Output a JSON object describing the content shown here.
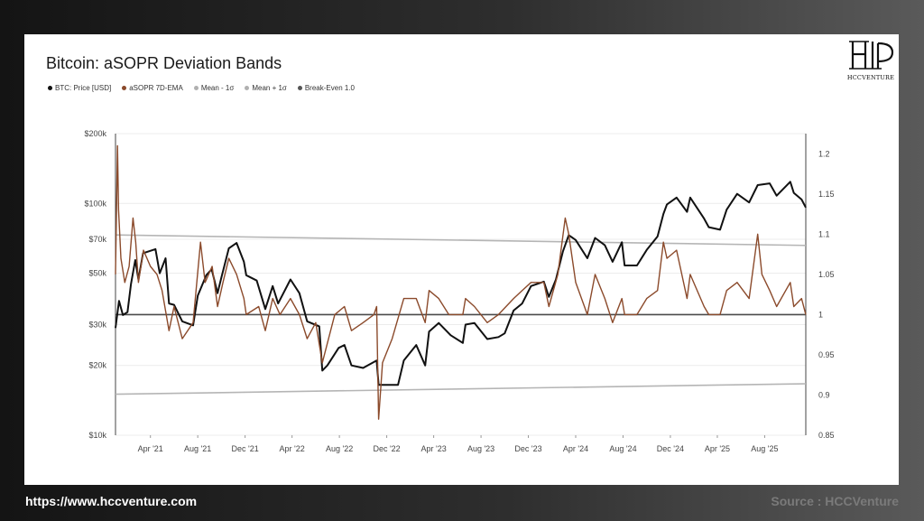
{
  "footer": {
    "url": "https://www.hccventure.com",
    "source": "Source : HCCVenture"
  },
  "logo": {
    "text": "HCCVENTURE"
  },
  "chart_data": {
    "type": "line",
    "title": "Bitcoin: aSOPR Deviation Bands",
    "legend": [
      {
        "name": "BTC: Price [USD]",
        "color": "#111111"
      },
      {
        "name": "aSOPR 7D-EMA",
        "color": "#8b4a2b"
      },
      {
        "name": "Mean - 1σ",
        "color": "#b0b0b0"
      },
      {
        "name": "Mean + 1σ",
        "color": "#b0b0b0"
      },
      {
        "name": "Break-Even 1.0",
        "color": "#555555"
      }
    ],
    "legend_placement": "top-left",
    "grid": true,
    "x_ticks": [
      "Apr '21",
      "Aug '21",
      "Dec '21",
      "Apr '22",
      "Aug '22",
      "Dec '22",
      "Apr '23",
      "Aug '23",
      "Dec '23",
      "Apr '24",
      "Aug '24",
      "Dec '24",
      "Apr '25",
      "Aug '25"
    ],
    "x_range": [
      "2021-01-01",
      "2025-11-15"
    ],
    "y_left": {
      "scale": "log",
      "range": [
        10000,
        200000
      ],
      "ticks": [
        10000,
        20000,
        30000,
        50000,
        70000,
        100000,
        200000
      ],
      "tick_labels": [
        "$10k",
        "$20k",
        "$30k",
        "$50k",
        "$70k",
        "$100k",
        "$200k"
      ]
    },
    "y_right": {
      "scale": "linear",
      "range": [
        0.85,
        1.225
      ],
      "ticks": [
        0.85,
        0.9,
        0.95,
        1,
        1.05,
        1.1,
        1.15,
        1.2
      ],
      "tick_labels": [
        "0.85",
        "0.9",
        "0.95",
        "1",
        "1.05",
        "1.1",
        "1.15",
        "1.2"
      ]
    },
    "bands": {
      "mean_plus": {
        "start": [
          "2021-01-01",
          1.099
        ],
        "end": [
          "2025-11-15",
          1.086
        ]
      },
      "mean_minus": {
        "start": [
          "2021-01-01",
          0.901
        ],
        "end": [
          "2025-11-15",
          0.914
        ]
      },
      "break_even": 1.0
    },
    "series": [
      {
        "name": "BTC: Price [USD]",
        "axis": "left",
        "color": "#111111",
        "points": [
          [
            "2021-01-01",
            29000
          ],
          [
            "2021-01-10",
            38000
          ],
          [
            "2021-01-20",
            33000
          ],
          [
            "2021-02-01",
            34000
          ],
          [
            "2021-02-10",
            45000
          ],
          [
            "2021-02-21",
            57000
          ],
          [
            "2021-03-01",
            47000
          ],
          [
            "2021-03-13",
            61000
          ],
          [
            "2021-04-14",
            63500
          ],
          [
            "2021-04-25",
            50000
          ],
          [
            "2021-05-10",
            58000
          ],
          [
            "2021-05-19",
            37000
          ],
          [
            "2021-06-01",
            36500
          ],
          [
            "2021-06-22",
            31000
          ],
          [
            "2021-07-20",
            29800
          ],
          [
            "2021-08-01",
            40000
          ],
          [
            "2021-08-23",
            49000
          ],
          [
            "2021-09-06",
            52000
          ],
          [
            "2021-09-21",
            41000
          ],
          [
            "2021-10-01",
            48000
          ],
          [
            "2021-10-20",
            64000
          ],
          [
            "2021-11-09",
            67500
          ],
          [
            "2021-11-28",
            56000
          ],
          [
            "2021-12-04",
            49000
          ],
          [
            "2021-12-31",
            46500
          ],
          [
            "2022-01-22",
            35000
          ],
          [
            "2022-02-10",
            44000
          ],
          [
            "2022-02-24",
            37000
          ],
          [
            "2022-03-28",
            47000
          ],
          [
            "2022-04-20",
            41000
          ],
          [
            "2022-05-10",
            31000
          ],
          [
            "2022-06-10",
            29500
          ],
          [
            "2022-06-18",
            19000
          ],
          [
            "2022-07-01",
            20000
          ],
          [
            "2022-07-30",
            23800
          ],
          [
            "2022-08-14",
            24500
          ],
          [
            "2022-09-01",
            20000
          ],
          [
            "2022-10-01",
            19500
          ],
          [
            "2022-11-05",
            21000
          ],
          [
            "2022-11-10",
            16500
          ],
          [
            "2022-12-30",
            16500
          ],
          [
            "2023-01-14",
            21000
          ],
          [
            "2023-02-15",
            24500
          ],
          [
            "2023-03-10",
            20000
          ],
          [
            "2023-03-20",
            28000
          ],
          [
            "2023-04-14",
            30500
          ],
          [
            "2023-05-15",
            27000
          ],
          [
            "2023-06-15",
            25000
          ],
          [
            "2023-06-22",
            30000
          ],
          [
            "2023-07-15",
            30500
          ],
          [
            "2023-08-17",
            26000
          ],
          [
            "2023-09-15",
            26500
          ],
          [
            "2023-10-01",
            27500
          ],
          [
            "2023-10-24",
            34500
          ],
          [
            "2023-11-15",
            37000
          ],
          [
            "2023-12-08",
            44000
          ],
          [
            "2024-01-10",
            46000
          ],
          [
            "2024-01-23",
            39500
          ],
          [
            "2024-02-10",
            47000
          ],
          [
            "2024-02-28",
            62000
          ],
          [
            "2024-03-14",
            73000
          ],
          [
            "2024-04-01",
            69500
          ],
          [
            "2024-05-01",
            58000
          ],
          [
            "2024-05-21",
            71000
          ],
          [
            "2024-06-15",
            66000
          ],
          [
            "2024-07-05",
            56000
          ],
          [
            "2024-07-29",
            68000
          ],
          [
            "2024-08-05",
            54000
          ],
          [
            "2024-09-06",
            54000
          ],
          [
            "2024-10-01",
            63000
          ],
          [
            "2024-10-29",
            72000
          ],
          [
            "2024-11-13",
            90000
          ],
          [
            "2024-11-22",
            99000
          ],
          [
            "2024-12-17",
            106000
          ],
          [
            "2025-01-13",
            92000
          ],
          [
            "2025-01-21",
            106000
          ],
          [
            "2025-02-26",
            86000
          ],
          [
            "2025-03-10",
            79000
          ],
          [
            "2025-04-08",
            77000
          ],
          [
            "2025-04-25",
            94000
          ],
          [
            "2025-05-22",
            110000
          ],
          [
            "2025-06-22",
            101000
          ],
          [
            "2025-07-14",
            120000
          ],
          [
            "2025-08-14",
            122000
          ],
          [
            "2025-09-01",
            108000
          ],
          [
            "2025-10-06",
            124000
          ],
          [
            "2025-10-15",
            111000
          ],
          [
            "2025-11-04",
            104000
          ],
          [
            "2025-11-15",
            96000
          ]
        ]
      },
      {
        "name": "aSOPR 7D-EMA",
        "axis": "right",
        "color": "#8b4a2b",
        "points": [
          [
            "2021-01-01",
            1.05
          ],
          [
            "2021-01-06",
            1.21
          ],
          [
            "2021-01-09",
            1.13
          ],
          [
            "2021-01-15",
            1.07
          ],
          [
            "2021-01-25",
            1.04
          ],
          [
            "2021-02-05",
            1.06
          ],
          [
            "2021-02-15",
            1.12
          ],
          [
            "2021-02-22",
            1.09
          ],
          [
            "2021-03-01",
            1.04
          ],
          [
            "2021-03-14",
            1.08
          ],
          [
            "2021-04-01",
            1.06
          ],
          [
            "2021-04-18",
            1.05
          ],
          [
            "2021-05-01",
            1.03
          ],
          [
            "2021-05-19",
            0.98
          ],
          [
            "2021-06-01",
            1.01
          ],
          [
            "2021-06-22",
            0.97
          ],
          [
            "2021-07-20",
            0.99
          ],
          [
            "2021-08-08",
            1.09
          ],
          [
            "2021-08-20",
            1.04
          ],
          [
            "2021-09-07",
            1.06
          ],
          [
            "2021-09-21",
            1.01
          ],
          [
            "2021-10-05",
            1.04
          ],
          [
            "2021-10-20",
            1.07
          ],
          [
            "2021-11-09",
            1.05
          ],
          [
            "2021-11-28",
            1.02
          ],
          [
            "2021-12-04",
            1.0
          ],
          [
            "2022-01-05",
            1.01
          ],
          [
            "2022-01-22",
            0.98
          ],
          [
            "2022-02-10",
            1.02
          ],
          [
            "2022-03-01",
            1.0
          ],
          [
            "2022-03-28",
            1.02
          ],
          [
            "2022-04-20",
            1.0
          ],
          [
            "2022-05-10",
            0.97
          ],
          [
            "2022-06-01",
            0.99
          ],
          [
            "2022-06-18",
            0.94
          ],
          [
            "2022-07-20",
            1.0
          ],
          [
            "2022-08-14",
            1.01
          ],
          [
            "2022-09-01",
            0.98
          ],
          [
            "2022-10-01",
            0.99
          ],
          [
            "2022-10-29",
            1.0
          ],
          [
            "2022-11-05",
            1.01
          ],
          [
            "2022-11-10",
            0.87
          ],
          [
            "2022-11-20",
            0.94
          ],
          [
            "2022-12-15",
            0.97
          ],
          [
            "2023-01-14",
            1.02
          ],
          [
            "2023-02-15",
            1.02
          ],
          [
            "2023-03-10",
            0.99
          ],
          [
            "2023-03-20",
            1.03
          ],
          [
            "2023-04-14",
            1.02
          ],
          [
            "2023-05-10",
            1.0
          ],
          [
            "2023-06-15",
            1.0
          ],
          [
            "2023-06-22",
            1.02
          ],
          [
            "2023-07-15",
            1.01
          ],
          [
            "2023-08-17",
            0.99
          ],
          [
            "2023-09-15",
            1.0
          ],
          [
            "2023-10-24",
            1.02
          ],
          [
            "2023-11-15",
            1.03
          ],
          [
            "2023-12-08",
            1.04
          ],
          [
            "2024-01-10",
            1.04
          ],
          [
            "2024-01-23",
            1.01
          ],
          [
            "2024-02-15",
            1.05
          ],
          [
            "2024-03-05",
            1.12
          ],
          [
            "2024-03-14",
            1.1
          ],
          [
            "2024-04-01",
            1.04
          ],
          [
            "2024-05-01",
            1.0
          ],
          [
            "2024-05-21",
            1.05
          ],
          [
            "2024-06-15",
            1.02
          ],
          [
            "2024-07-05",
            0.99
          ],
          [
            "2024-07-29",
            1.02
          ],
          [
            "2024-08-05",
            1.0
          ],
          [
            "2024-09-06",
            1.0
          ],
          [
            "2024-10-01",
            1.02
          ],
          [
            "2024-10-29",
            1.03
          ],
          [
            "2024-11-13",
            1.09
          ],
          [
            "2024-11-22",
            1.07
          ],
          [
            "2024-12-17",
            1.08
          ],
          [
            "2025-01-13",
            1.02
          ],
          [
            "2025-01-21",
            1.05
          ],
          [
            "2025-02-26",
            1.01
          ],
          [
            "2025-03-10",
            1.0
          ],
          [
            "2025-04-08",
            1.0
          ],
          [
            "2025-04-25",
            1.03
          ],
          [
            "2025-05-22",
            1.04
          ],
          [
            "2025-06-22",
            1.02
          ],
          [
            "2025-07-14",
            1.1
          ],
          [
            "2025-07-25",
            1.05
          ],
          [
            "2025-08-14",
            1.03
          ],
          [
            "2025-09-01",
            1.01
          ],
          [
            "2025-10-06",
            1.04
          ],
          [
            "2025-10-15",
            1.01
          ],
          [
            "2025-11-04",
            1.02
          ],
          [
            "2025-11-15",
            1.0
          ]
        ]
      }
    ]
  }
}
